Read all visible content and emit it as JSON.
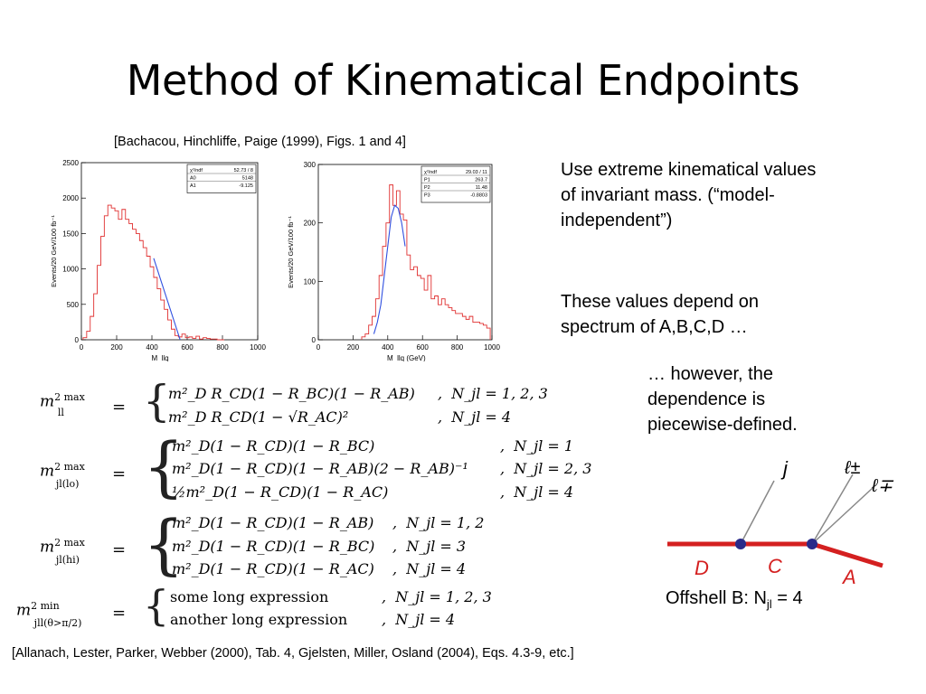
{
  "title": "Method of Kinematical Endpoints",
  "citation_top": "[Bachacou, Hinchliffe, Paige (1999), Figs. 1 and 4]",
  "bullets": [
    "Use extreme kinematical values of invariant mass. (“model-independent”)",
    "These values depend on spectrum of A,B,C,D …",
    "… however, the dependence is piecewise-defined."
  ],
  "diagram": {
    "labels": {
      "j": "j",
      "lpm": "ℓ±",
      "lmp": "ℓ∓",
      "D": "D",
      "C": "C",
      "A": "A"
    },
    "caption_prefix": "Offshell B:  N",
    "caption_sub": "jl",
    "caption_suffix": " = 4",
    "line_color": "#d42020",
    "vertex_color": "#2a2a8a"
  },
  "equations": {
    "ll_lhs": "m",
    "ll_rows": [
      {
        "expr": "m²_D R_CD(1 − R_BC)(1 − R_AB)",
        "cond": "N_jl = 1, 2, 3"
      },
      {
        "expr": "m²_D R_CD(1 − √R_AC)²",
        "cond": "N_jl = 4"
      }
    ],
    "jllo_rows": [
      {
        "expr": "m²_D(1 − R_CD)(1 − R_BC)",
        "cond": "N_jl = 1"
      },
      {
        "expr": "m²_D(1 − R_CD)(1 − R_AB)(2 − R_AB)⁻¹",
        "cond": "N_jl = 2, 3"
      },
      {
        "expr": "½m²_D(1 − R_CD)(1 − R_AC)",
        "cond": "N_jl = 4"
      }
    ],
    "jlhi_rows": [
      {
        "expr": "m²_D(1 − R_CD)(1 − R_AB)",
        "cond": "N_jl = 1, 2"
      },
      {
        "expr": "m²_D(1 − R_CD)(1 − R_BC)",
        "cond": "N_jl = 3"
      },
      {
        "expr": "m²_D(1 − R_CD)(1 − R_AC)",
        "cond": "N_jl = 4"
      }
    ],
    "jlmin_rows": [
      {
        "expr": "some long expression",
        "cond": "N_jl = 1, 2, 3"
      },
      {
        "expr": "another long expression",
        "cond": "N_jl = 4"
      }
    ]
  },
  "citation_bottom": "[Allanach, Lester, Parker, Webber (2000), Tab. 4, Gjelsten, Miller, Osland (2004), Eqs. 4.3-9, etc.]",
  "chart_data": [
    {
      "type": "line",
      "xlabel": "M_llq",
      "ylabel": "Events/20 GeV/100 fb⁻¹",
      "xlim": [
        0,
        1000
      ],
      "ylim": [
        0,
        2500
      ],
      "x_ticks": [
        0,
        200,
        400,
        600,
        800,
        1000
      ],
      "y_ticks": [
        0,
        500,
        1000,
        1500,
        2000,
        2500
      ],
      "stats_box": [
        {
          "name": "χ²/ndf",
          "value": "52.73 / 8"
        },
        {
          "name": "A0",
          "value": "5148"
        },
        {
          "name": "A1",
          "value": "-9.125"
        }
      ],
      "series": [
        {
          "x": [
            20,
            40,
            60,
            80,
            100,
            120,
            140,
            160,
            180,
            200,
            220,
            240,
            260,
            280,
            300,
            320,
            340,
            360,
            380,
            400,
            420,
            440,
            460,
            480,
            500,
            520,
            540,
            560,
            580,
            600,
            620,
            640,
            660,
            680,
            700,
            720,
            740,
            760,
            780,
            800
          ],
          "values": [
            30,
            120,
            330,
            650,
            1050,
            1460,
            1750,
            1900,
            1860,
            1820,
            1700,
            1840,
            1700,
            1640,
            1560,
            1500,
            1400,
            1300,
            1180,
            1030,
            880,
            720,
            560,
            430,
            280,
            150,
            60,
            40,
            80,
            30,
            40,
            20,
            50,
            10,
            30,
            20,
            10,
            10,
            0,
            0
          ]
        },
        {
          "x": [
            410,
            560
          ],
          "values": [
            1150,
            0
          ]
        }
      ]
    },
    {
      "type": "line",
      "xlabel": "M_llq (GeV)",
      "ylabel": "Events/20 GeV/100 fb⁻¹",
      "xlim": [
        0,
        1000
      ],
      "ylim": [
        0,
        300
      ],
      "x_ticks": [
        0,
        200,
        400,
        600,
        800,
        1000
      ],
      "y_ticks": [
        0,
        100,
        200,
        300
      ],
      "stats_box": [
        {
          "name": "χ²/ndf",
          "value": "29.03 / 11"
        },
        {
          "name": "P1",
          "value": "263.7"
        },
        {
          "name": "P2",
          "value": "11.48"
        },
        {
          "name": "P3",
          "value": "-0.8803"
        }
      ],
      "series": [
        {
          "x": [
            260,
            280,
            300,
            320,
            340,
            360,
            380,
            400,
            420,
            440,
            460,
            480,
            500,
            520,
            540,
            560,
            580,
            600,
            620,
            640,
            660,
            680,
            700,
            720,
            740,
            760,
            780,
            800,
            820,
            840,
            860,
            880,
            900,
            920,
            940,
            960,
            980
          ],
          "values": [
            5,
            10,
            25,
            40,
            70,
            110,
            160,
            200,
            265,
            230,
            255,
            215,
            205,
            145,
            120,
            125,
            110,
            105,
            85,
            110,
            70,
            75,
            60,
            70,
            60,
            55,
            50,
            45,
            45,
            40,
            35,
            40,
            30,
            30,
            28,
            25,
            20
          ]
        },
        {
          "x": [
            320,
            340,
            360,
            380,
            400,
            420,
            440,
            460,
            480,
            500
          ],
          "values": [
            10,
            30,
            60,
            110,
            160,
            210,
            230,
            225,
            200,
            160
          ]
        }
      ]
    }
  ]
}
